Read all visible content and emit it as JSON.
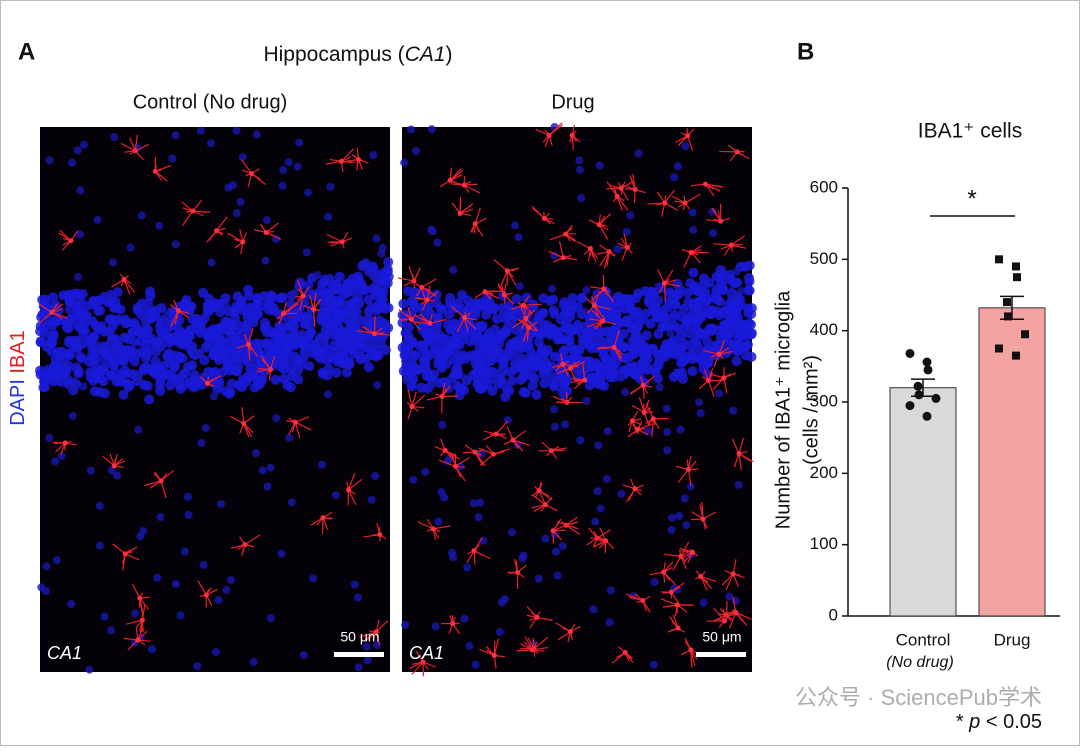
{
  "panel_a": {
    "label": "A",
    "title_parts": [
      "Hippocampus (",
      "CA1",
      ")"
    ],
    "stain_legend": [
      "DAPI",
      "IBA1"
    ],
    "images": [
      {
        "title": "Control (No drug)",
        "region": "CA1",
        "scale_bar": "50 μm"
      },
      {
        "title": "Drug",
        "region": "CA1",
        "scale_bar": "50 μm"
      }
    ]
  },
  "chart_data": {
    "type": "bar",
    "panel_label": "B",
    "title": "IBA1⁺ cells",
    "y_label": [
      "Number of IBA1⁺ microglia",
      "(cells / mm²)"
    ],
    "categories": [
      "Control",
      "Drug"
    ],
    "control_note": "(No drug)",
    "values": [
      320,
      432
    ],
    "errors": [
      12,
      16
    ],
    "colors": [
      "#d9d9d9",
      "#f4a3a3"
    ],
    "points": [
      [
        368,
        356,
        345,
        322,
        310,
        305,
        295,
        280
      ],
      [
        500,
        490,
        475,
        440,
        420,
        395,
        375,
        365
      ]
    ],
    "significance": "*",
    "ylim": [
      0,
      600
    ],
    "yticks": [
      0,
      100,
      200,
      300,
      400,
      500,
      600
    ]
  },
  "footnote_parts": [
    "* ",
    "p",
    " < 0.05"
  ],
  "watermark": "公众号 · SciencePub学术"
}
